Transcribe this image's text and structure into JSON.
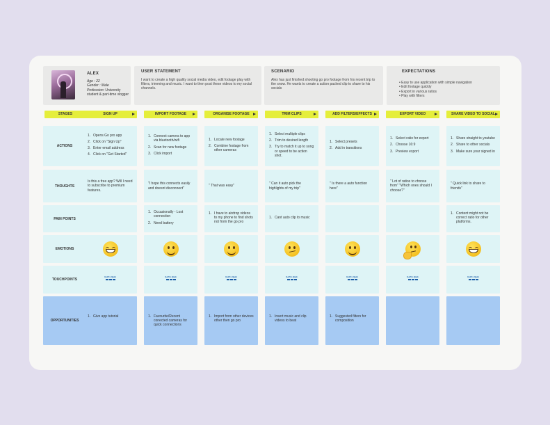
{
  "persona": {
    "name": "ALEX",
    "age": "Age : 22",
    "gender": "Gender : Male",
    "profession_label": "Profession:",
    "profession": "University student & part-time vlogger"
  },
  "user_statement": {
    "title": "USER STATEMENT",
    "text": "I want to create a high quality social media video, edit footage play with filters, trimming and music. I want to then post these videos to my social channels."
  },
  "scenario": {
    "title": "SCENARIO",
    "text": "Alex has just finished shooting go pro footage from his recent trip to the snow. He wants to create a action packed clip to share to his socials"
  },
  "expectations": {
    "title": "EXPECTATIONS",
    "items": [
      "Easy to use application with simple navigation",
      "Edit footage quickly",
      "Export in various ratios",
      "Play with filters"
    ]
  },
  "stages_label": "STAGES",
  "stages": [
    "SIGN UP",
    "IMPORT FOOTAGE",
    "ORGANISE FOOTAGE",
    "TRIM CLIPS",
    "ADD FILTERS/EFFECTS",
    "EXPORT VIDEO",
    "SHARE VIDEO TO SOCIAL"
  ],
  "rows": {
    "actions": "ACTIONS",
    "thoughts": "THOUGHTS",
    "pain_points": "PAIN POINTS",
    "emotions": "EMOTIONS",
    "touchpoints": "TOUCHPOINTS",
    "opportunities": "OPPORTUNITIES"
  },
  "actions": [
    [
      "Opens Go pro app",
      "Click on \"Sign Up\"",
      "Enter email address",
      "Click on \"Get Started\""
    ],
    [
      "Connect camera to app via bluetooth/wifi",
      "Scan for new footage",
      "Click import"
    ],
    [
      "Locate new footage",
      "Combine footage from other cameras"
    ],
    [
      "Select multiple clips",
      "Trim to desired length",
      "Try to match it up to song or speed to be action shot."
    ],
    [
      "Select presets",
      "Add in transitions"
    ],
    [
      "Select ratio for export",
      "Choose 16:9",
      "Preview export"
    ],
    [
      "Share straight to youtube",
      "Share to other socials",
      "Make sure your signed in"
    ]
  ],
  "thoughts": [
    "Is this a free app? Will I need to subscribe to premium features.",
    "\"I hope this connects easily and doesnt disconnect\"",
    "\" That was easy\"",
    "\" Can it auto pick the highlights of my trip\"",
    "\" Is there a auto function here\"",
    "\" Lot of ratios to choose from\" \"Which ones should I choose?\"",
    "\" Quick link to share to friends\""
  ],
  "pain_points": [
    [],
    [
      "Occasionally - Lost connection",
      "Need battery"
    ],
    [
      "I have to airdrop videos to my phone to find shots not from the go pro"
    ],
    [
      "Cant auto clip to music"
    ],
    [],
    [],
    [
      "Content might not be correct ratio for other platforms."
    ]
  ],
  "emotions": [
    "grinning-face",
    "slightly-smiling-face",
    "slightly-smiling-face",
    "confused-face",
    "slightly-smiling-face",
    "thinking-face",
    "grinning-face"
  ],
  "touchpoints": [
    "GoPro Quik",
    "GoPro Quik",
    "GoPro Quik",
    "GoPro Quik",
    "GoPro Quik",
    "GoPro Quik",
    "GoPro Quik"
  ],
  "opportunities": [
    [
      "Give app tutorial"
    ],
    [
      "Favourite/Recent conected cameras for quick connections"
    ],
    [
      "Import from other devices other then go pro"
    ],
    [
      "Insert music and clip videos to beat"
    ],
    [
      "Suggested filters for composition"
    ],
    [],
    []
  ],
  "colors": {
    "stage_pill": "#e5ee3b",
    "cell": "#def4f6",
    "opportunity": "#a6caf3",
    "board": "#f7f7f5",
    "background": "#e2deee"
  }
}
